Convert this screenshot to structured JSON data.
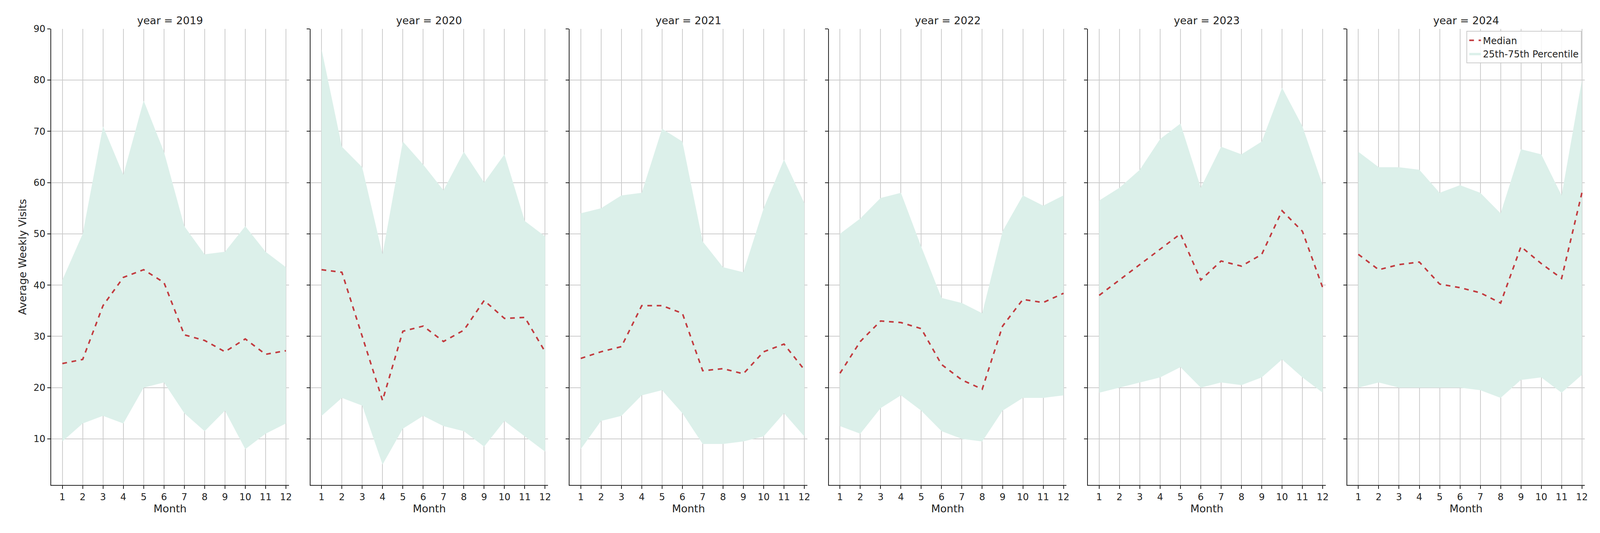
{
  "chart_data": [
    {
      "type": "line",
      "title": "year = 2019",
      "xlabel": "Month",
      "ylabel": "Average Weekly Visits",
      "x": [
        1,
        2,
        3,
        4,
        5,
        6,
        7,
        8,
        9,
        10,
        11,
        12
      ],
      "xlim": [
        0.45,
        12.15
      ],
      "xticks": [
        1,
        2,
        3,
        4,
        5,
        6,
        7,
        8,
        9,
        10,
        11,
        12
      ],
      "ylim": [
        1,
        90
      ],
      "yticks": [
        10,
        20,
        30,
        40,
        50,
        60,
        70,
        80,
        90
      ],
      "grid": true,
      "series": [
        {
          "name": "Median",
          "color": "#c23b3f",
          "line_style": "dashed",
          "values": [
            24.7,
            25.5,
            36,
            41.5,
            43,
            40.5,
            30.3,
            29.2,
            27,
            29.5,
            26.5,
            27.2
          ]
        },
        {
          "name": "25th-75th Percentile",
          "type": "area",
          "color": "#dcf0ea",
          "lower": [
            9.5,
            13,
            14.5,
            13,
            20,
            21,
            15,
            11.5,
            15.5,
            8,
            11,
            13
          ],
          "upper": [
            41,
            50,
            71,
            61.5,
            76,
            66,
            51.5,
            46,
            46.5,
            51.5,
            46.5,
            43.5
          ]
        }
      ]
    },
    {
      "type": "line",
      "title": "year = 2020",
      "xlabel": "Month",
      "tick_labels": "x",
      "x": [
        1,
        2,
        3,
        4,
        5,
        6,
        7,
        8,
        9,
        10,
        11,
        12
      ],
      "xlim": [
        0.45,
        12.15
      ],
      "xticks": [
        1,
        2,
        3,
        4,
        5,
        6,
        7,
        8,
        9,
        10,
        11,
        12
      ],
      "ylim": [
        1,
        90
      ],
      "yticks": [
        10,
        20,
        30,
        40,
        50,
        60,
        70,
        80,
        90
      ],
      "grid": true,
      "series": [
        {
          "name": "Median",
          "color": "#c23b3f",
          "line_style": "dashed",
          "values": [
            43,
            42.5,
            30,
            17.5,
            31,
            32,
            29,
            31.2,
            37,
            33.5,
            33.7,
            27
          ]
        },
        {
          "name": "25th-75th Percentile",
          "type": "area",
          "color": "#dcf0ea",
          "lower": [
            14.5,
            18,
            16.5,
            5,
            12,
            14.5,
            12.5,
            11.5,
            8.5,
            13.5,
            10.5,
            7.5
          ],
          "upper": [
            86,
            67,
            63,
            46,
            68,
            63.5,
            58.5,
            66,
            60,
            65.5,
            52.5,
            49.5
          ]
        }
      ]
    },
    {
      "type": "line",
      "title": "year = 2021",
      "xlabel": "Month",
      "tick_labels": "x",
      "x": [
        1,
        2,
        3,
        4,
        5,
        6,
        7,
        8,
        9,
        10,
        11,
        12
      ],
      "xlim": [
        0.45,
        12.15
      ],
      "xticks": [
        1,
        2,
        3,
        4,
        5,
        6,
        7,
        8,
        9,
        10,
        11,
        12
      ],
      "ylim": [
        1,
        90
      ],
      "yticks": [
        10,
        20,
        30,
        40,
        50,
        60,
        70,
        80,
        90
      ],
      "grid": true,
      "series": [
        {
          "name": "Median",
          "color": "#c23b3f",
          "line_style": "dashed",
          "values": [
            25.7,
            27,
            28,
            36,
            36,
            34.5,
            23.3,
            23.7,
            22.7,
            27,
            28.5,
            23.5
          ]
        },
        {
          "name": "25th-75th Percentile",
          "type": "area",
          "color": "#dcf0ea",
          "lower": [
            8,
            13.5,
            14.5,
            18.5,
            19.5,
            15,
            9,
            9,
            9.5,
            10.5,
            15,
            10.5
          ],
          "upper": [
            54,
            55,
            57.5,
            58,
            70.5,
            68,
            48.5,
            43.5,
            42.5,
            55,
            64.5,
            56
          ]
        }
      ]
    },
    {
      "type": "line",
      "title": "year = 2022",
      "xlabel": "Month",
      "tick_labels": "x",
      "x": [
        1,
        2,
        3,
        4,
        5,
        6,
        7,
        8,
        9,
        10,
        11,
        12
      ],
      "xlim": [
        0.45,
        12.15
      ],
      "xticks": [
        1,
        2,
        3,
        4,
        5,
        6,
        7,
        8,
        9,
        10,
        11,
        12
      ],
      "ylim": [
        1,
        90
      ],
      "yticks": [
        10,
        20,
        30,
        40,
        50,
        60,
        70,
        80,
        90
      ],
      "grid": true,
      "series": [
        {
          "name": "Median",
          "color": "#c23b3f",
          "line_style": "dashed",
          "values": [
            22.8,
            29,
            33,
            32.7,
            31.5,
            24.5,
            21.5,
            19.7,
            32,
            37.2,
            36.6,
            38.4
          ]
        },
        {
          "name": "25th-75th Percentile",
          "type": "area",
          "color": "#dcf0ea",
          "lower": [
            12.5,
            11,
            16,
            18.5,
            15.5,
            11.5,
            10,
            9.5,
            15.5,
            18,
            18,
            18.5
          ],
          "upper": [
            50,
            53,
            57,
            58,
            47.5,
            37.5,
            36.5,
            34.5,
            50.5,
            57.5,
            55.5,
            57.5
          ]
        }
      ]
    },
    {
      "type": "line",
      "title": "year = 2023",
      "xlabel": "Month",
      "tick_labels": "x",
      "x": [
        1,
        2,
        3,
        4,
        5,
        6,
        7,
        8,
        9,
        10,
        11,
        12
      ],
      "xlim": [
        0.45,
        12.15
      ],
      "xticks": [
        1,
        2,
        3,
        4,
        5,
        6,
        7,
        8,
        9,
        10,
        11,
        12
      ],
      "ylim": [
        1,
        90
      ],
      "yticks": [
        10,
        20,
        30,
        40,
        50,
        60,
        70,
        80,
        90
      ],
      "grid": true,
      "series": [
        {
          "name": "Median",
          "color": "#c23b3f",
          "line_style": "dashed",
          "values": [
            38,
            41,
            44,
            47,
            50,
            41,
            44.7,
            43.7,
            46,
            54.5,
            50.5,
            39.5
          ]
        },
        {
          "name": "25th-75th Percentile",
          "type": "area",
          "color": "#dcf0ea",
          "lower": [
            19,
            20,
            21,
            22,
            24,
            20,
            21,
            20.5,
            22,
            25.5,
            22,
            19
          ],
          "upper": [
            56.5,
            59,
            62.5,
            68.5,
            71.5,
            59,
            67,
            65.5,
            68,
            78.5,
            71,
            59.5
          ]
        }
      ]
    },
    {
      "type": "line",
      "title": "year = 2024",
      "xlabel": "Month",
      "tick_labels": "x",
      "legend": "upper right",
      "x": [
        1,
        2,
        3,
        4,
        5,
        6,
        7,
        8,
        9,
        10,
        11,
        12
      ],
      "xlim": [
        0.45,
        12.15
      ],
      "xticks": [
        1,
        2,
        3,
        4,
        5,
        6,
        7,
        8,
        9,
        10,
        11,
        12
      ],
      "ylim": [
        1,
        90
      ],
      "yticks": [
        10,
        20,
        30,
        40,
        50,
        60,
        70,
        80,
        90
      ],
      "grid": true,
      "series": [
        {
          "name": "Median",
          "color": "#c23b3f",
          "line_style": "dashed",
          "values": [
            46,
            43,
            44,
            44.5,
            40.2,
            39.5,
            38.5,
            36.5,
            47.5,
            44.2,
            41.3,
            58
          ]
        },
        {
          "name": "25th-75th Percentile",
          "type": "area",
          "color": "#dcf0ea",
          "lower": [
            20,
            21,
            20,
            20,
            20,
            20,
            19.5,
            18,
            21.5,
            22,
            19,
            22.5
          ],
          "upper": [
            66,
            63,
            63,
            62.5,
            58,
            59.5,
            58,
            54,
            66.5,
            65.5,
            57.5,
            80
          ]
        }
      ]
    }
  ]
}
